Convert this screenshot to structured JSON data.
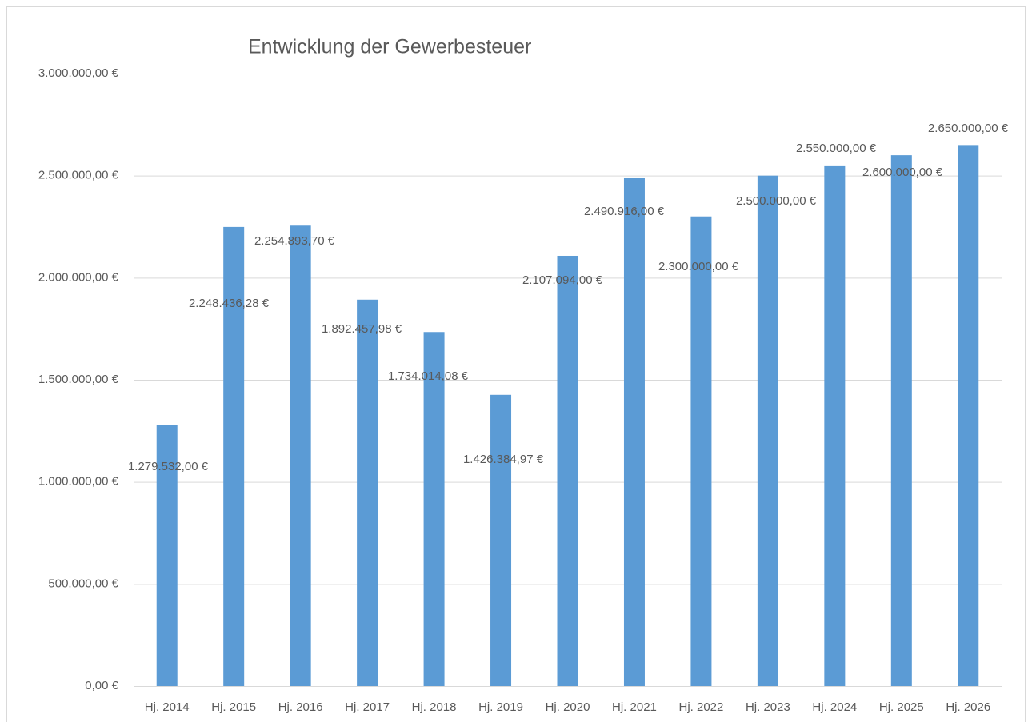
{
  "chart_data": {
    "type": "bar",
    "title": "Entwicklung der Gewerbesteuer",
    "categories": [
      "Hj. 2014",
      "Hj. 2015",
      "Hj. 2016",
      "Hj. 2017",
      "Hj. 2018",
      "Hj. 2019",
      "Hj. 2020",
      "Hj. 2021",
      "Hj. 2022",
      "Hj. 2023",
      "Hj. 2024",
      "Hj. 2025",
      "Hj. 2026"
    ],
    "values": [
      1279532.0,
      2248436.28,
      2254893.7,
      1892457.98,
      1734014.08,
      1426384.97,
      2107094.0,
      2490916.0,
      2300000.0,
      2500000.0,
      2550000.0,
      2600000.0,
      2650000.0
    ],
    "value_labels": [
      "1.279.532,00 €",
      "2.248.436,28 €",
      "2.254.893,70 €",
      "1.892.457,98 €",
      "1.734.014,08 €",
      "1.426.384,97 €",
      "2.107.094,00 €",
      "2.490.916,00 €",
      "2.300.000,00 €",
      "2.500.000,00 €",
      "2.550.000,00 €",
      "2.600.000,00 €",
      "2.650.000,00 €"
    ],
    "color": "#5b9bd5",
    "ylim": [
      0,
      3000000
    ],
    "yticks": [
      {
        "value": 0,
        "label": "0,00 €"
      },
      {
        "value": 500000,
        "label": "500.000,00 €"
      },
      {
        "value": 1000000,
        "label": "1.000.000,00 €"
      },
      {
        "value": 1500000,
        "label": "1.500.000,00 €"
      },
      {
        "value": 2000000,
        "label": "2.000.000,00 €"
      },
      {
        "value": 2500000,
        "label": "2.500.000,00 €"
      },
      {
        "value": 3000000,
        "label": "3.000.000,00 €"
      }
    ],
    "grid": true
  }
}
